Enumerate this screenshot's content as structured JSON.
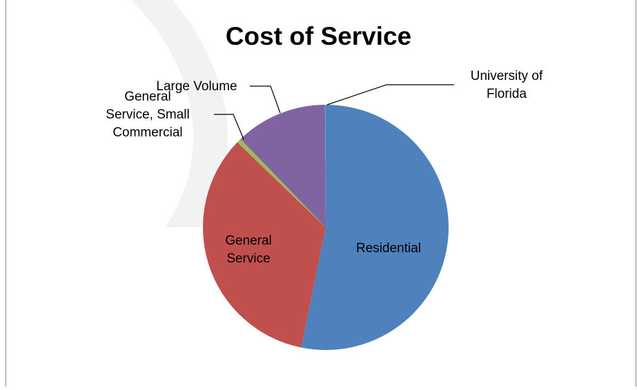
{
  "chart_data": {
    "type": "pie",
    "title": "Cost of Service",
    "slices": [
      {
        "label": "Residential",
        "value": 53.2,
        "color": "#4F81BD",
        "label_lines": [
          "Residential"
        ]
      },
      {
        "label": "General Service",
        "value": 34.0,
        "color": "#C0504D",
        "label_lines": [
          "General",
          "Service"
        ]
      },
      {
        "label": "General Service, Small Commercial",
        "value": 0.6,
        "color": "#9BBB59",
        "label_lines": [
          "General",
          "Service, Small",
          "Commercial"
        ]
      },
      {
        "label": "Large Volume",
        "value": 12.1,
        "color": "#8064A2",
        "label_lines": [
          "Large Volume"
        ]
      },
      {
        "label": "University of Florida",
        "value": 0.1,
        "color": "#4BACC6",
        "label_lines": [
          "University of",
          "Florida"
        ]
      }
    ],
    "start_angle": "12 o'clock",
    "direction": "clockwise",
    "legend": "none"
  }
}
